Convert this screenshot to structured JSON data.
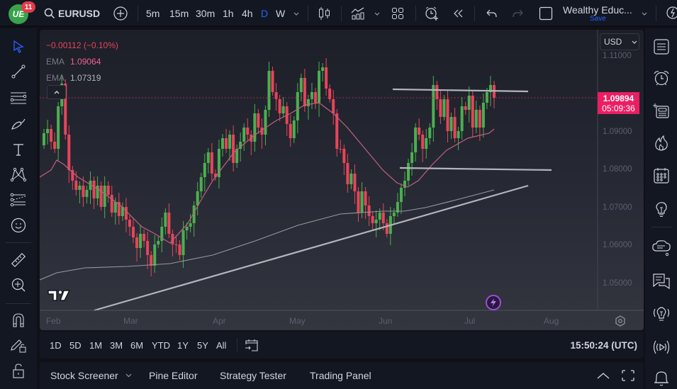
{
  "topbar": {
    "notification_count": "11",
    "symbol": "EURUSD",
    "timeframes": [
      {
        "label": "5m",
        "active": false
      },
      {
        "label": "15m",
        "active": false
      },
      {
        "label": "30m",
        "active": false
      },
      {
        "label": "1h",
        "active": false
      },
      {
        "label": "4h",
        "active": false
      },
      {
        "label": "D",
        "active": true
      },
      {
        "label": "W",
        "active": false
      }
    ],
    "layout_name": "Wealthy Educ...",
    "save_label": "Save"
  },
  "legend": {
    "change": "−0.00112 (−0.10%)",
    "ema1_label": "EMA",
    "ema1_value": "1.09064",
    "ema2_label": "EMA",
    "ema2_value": "1.07319"
  },
  "price_scale": {
    "currency": "USD",
    "labels": [
      "1.11000",
      "1.09000",
      "1.08000",
      "1.07000",
      "1.06000",
      "1.05000"
    ],
    "current_price": "1.09894",
    "countdown": "05:09:36"
  },
  "time_scale": {
    "labels": [
      "Feb",
      "Mar",
      "Apr",
      "May",
      "Jun",
      "Jul",
      "Aug"
    ]
  },
  "range_bar": {
    "ranges": [
      "1D",
      "5D",
      "1M",
      "3M",
      "6M",
      "YTD",
      "1Y",
      "5Y",
      "All"
    ],
    "clock": "15:50:24 (UTC)"
  },
  "bottom_tabs": {
    "tabs": [
      "Stock Screener",
      "Pine Editor",
      "Strategy Tester",
      "Trading Panel"
    ]
  },
  "colors": {
    "up": "#4caf50",
    "down": "#e8445a",
    "ema_fast": "#c2607e",
    "ema_slow": "#9598a1",
    "accent": "#2962ff",
    "price_tag": "#e91e63"
  }
}
